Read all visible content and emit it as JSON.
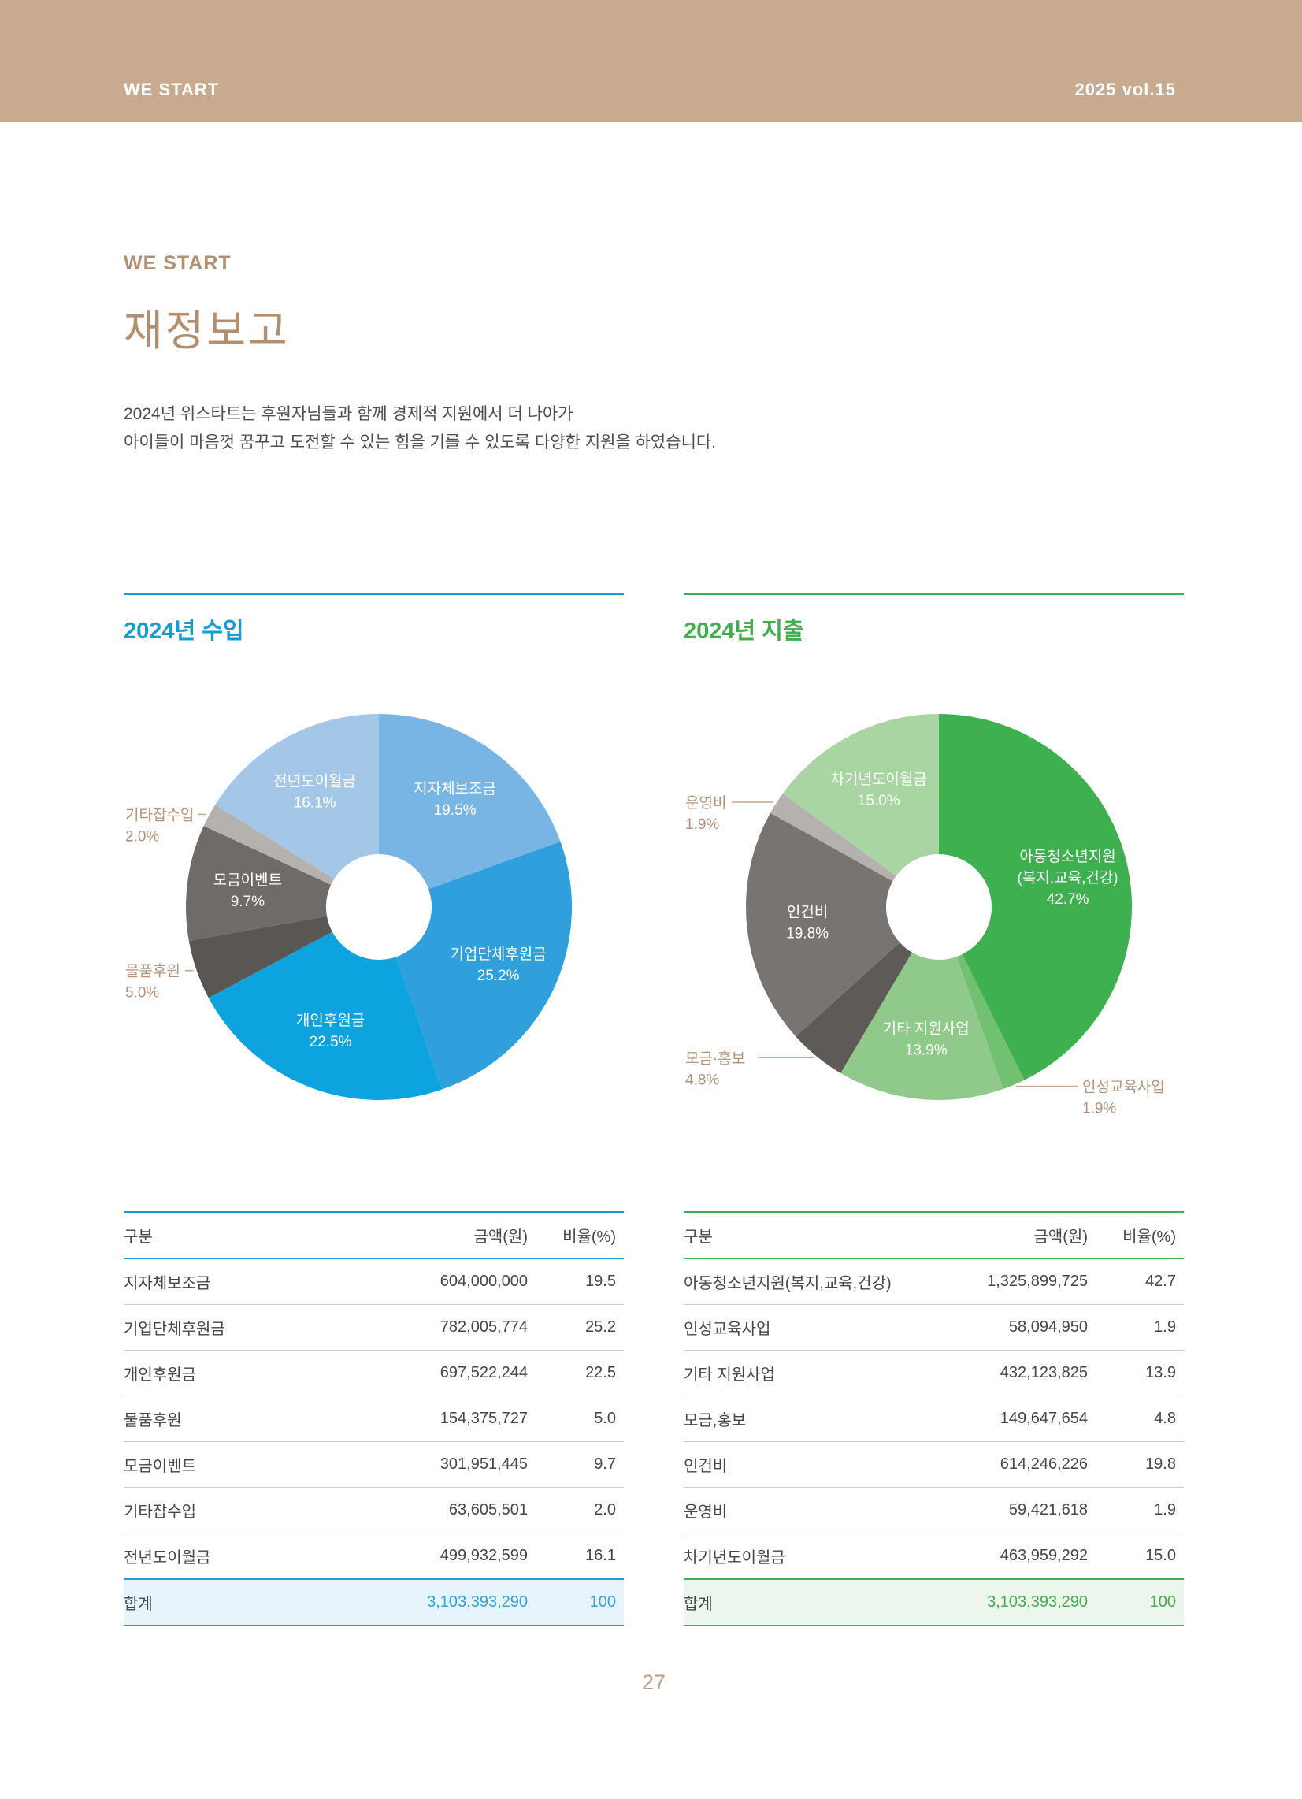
{
  "header": {
    "left": "WE START",
    "right": "2025 vol.15",
    "bg_color": "#c8aa8e"
  },
  "intro": {
    "eyebrow": "WE START",
    "title": "재정보고",
    "line1": "2024년 위스타트는 후원자님들과 함께 경제적 지원에서 더 나아가",
    "line2": "아이들이 마음껏 꿈꾸고 도전할 수 있는 힘을 기를 수 있도록 다양한 지원을 하였습니다."
  },
  "income": {
    "section_title": "2024년 수입",
    "accent_color": "#149bd8",
    "table": {
      "headers": [
        "구분",
        "금액(원)",
        "비율(%)"
      ],
      "rows": [
        [
          "지자체보조금",
          "604,000,000",
          "19.5"
        ],
        [
          "기업단체후원금",
          "782,005,774",
          "25.2"
        ],
        [
          "개인후원금",
          "697,522,244",
          "22.5"
        ],
        [
          "물품후원",
          "154,375,727",
          "5.0"
        ],
        [
          "모금이벤트",
          "301,951,445",
          "9.7"
        ],
        [
          "기타잡수입",
          "63,605,501",
          "2.0"
        ],
        [
          "전년도이월금",
          "499,932,599",
          "16.1"
        ]
      ],
      "total": {
        "label": "합계",
        "amount": "3,103,393,290",
        "ratio": "100"
      }
    }
  },
  "expense": {
    "section_title": "2024년 지출",
    "accent_color": "#3fae4c",
    "table": {
      "headers": [
        "구분",
        "금액(원)",
        "비율(%)"
      ],
      "rows": [
        [
          "아동청소년지원(복지,교육,건강)",
          "1,325,899,725",
          "42.7"
        ],
        [
          "인성교육사업",
          "58,094,950",
          "1.9"
        ],
        [
          "기타 지원사업",
          "432,123,825",
          "13.9"
        ],
        [
          "모금,홍보",
          "149,647,654",
          "4.8"
        ],
        [
          "인건비",
          "614,246,226",
          "19.8"
        ],
        [
          "운영비",
          "59,421,618",
          "1.9"
        ],
        [
          "차기년도이월금",
          "463,959,292",
          "15.0"
        ]
      ],
      "total": {
        "label": "합계",
        "amount": "3,103,393,290",
        "ratio": "100"
      }
    }
  },
  "chart_data": [
    {
      "id": "income",
      "type": "pie",
      "title": "2024년 수입",
      "legend_position": "inside-and-callouts",
      "slices": [
        {
          "label": "지자체보조금",
          "value_pct": 19.5,
          "pct_text": "19.5%",
          "amount": 604000000,
          "color": "#79b5e4",
          "label_pos": "inside"
        },
        {
          "label": "기업단체후원금",
          "value_pct": 25.2,
          "pct_text": "25.2%",
          "amount": 782005774,
          "color": "#2fa0dc",
          "label_pos": "inside"
        },
        {
          "label": "개인후원금",
          "value_pct": 22.5,
          "pct_text": "22.5%",
          "amount": 697522244,
          "color": "#0ca3de",
          "label_pos": "inside"
        },
        {
          "label": "물품후원",
          "value_pct": 5.0,
          "pct_text": "5.0%",
          "amount": 154375727,
          "color": "#5a5653",
          "label_pos": "left"
        },
        {
          "label": "모금이벤트",
          "value_pct": 9.7,
          "pct_text": "9.7%",
          "amount": 301951445,
          "color": "#6f6b68",
          "label_pos": "inside"
        },
        {
          "label": "기타잡수입",
          "value_pct": 2.0,
          "pct_text": "2.0%",
          "amount": 63605501,
          "color": "#b4b1ae",
          "label_pos": "left"
        },
        {
          "label": "전년도이월금",
          "value_pct": 16.1,
          "pct_text": "16.1%",
          "amount": 499932599,
          "color": "#a5c7e7",
          "label_pos": "inside"
        }
      ]
    },
    {
      "id": "expense",
      "type": "pie",
      "title": "2024년 지출",
      "legend_position": "inside-and-callouts",
      "slices": [
        {
          "label": "아동청소년지원",
          "label2": "(복지,교육,건강)",
          "value_pct": 42.7,
          "pct_text": "42.7%",
          "amount": 1325899725,
          "color": "#3eb050",
          "label_pos": "inside"
        },
        {
          "label": "인성교육사업",
          "value_pct": 1.9,
          "pct_text": "1.9%",
          "amount": 58094950,
          "color": "#72c072",
          "label_pos": "right"
        },
        {
          "label": "기타 지원사업",
          "value_pct": 13.9,
          "pct_text": "13.9%",
          "amount": 432123825,
          "color": "#90ca8b",
          "label_pos": "inside"
        },
        {
          "label": "모금·홍보",
          "value_pct": 4.8,
          "pct_text": "4.8%",
          "amount": 149647654,
          "color": "#5e5a57",
          "label_pos": "left"
        },
        {
          "label": "인건비",
          "value_pct": 19.8,
          "pct_text": "19.8%",
          "amount": 614246226,
          "color": "#777472",
          "label_pos": "inside"
        },
        {
          "label": "운영비",
          "value_pct": 1.9,
          "pct_text": "1.9%",
          "amount": 59421618,
          "color": "#b4b1ae",
          "label_pos": "left"
        },
        {
          "label": "차기년도이월금",
          "value_pct": 15.0,
          "pct_text": "15.0%",
          "amount": 463959292,
          "color": "#a9d5a2",
          "label_pos": "inside"
        }
      ]
    }
  ],
  "callout_text_color": "#b5937a",
  "callout_line_color": "#c9a683",
  "page_number": "27"
}
